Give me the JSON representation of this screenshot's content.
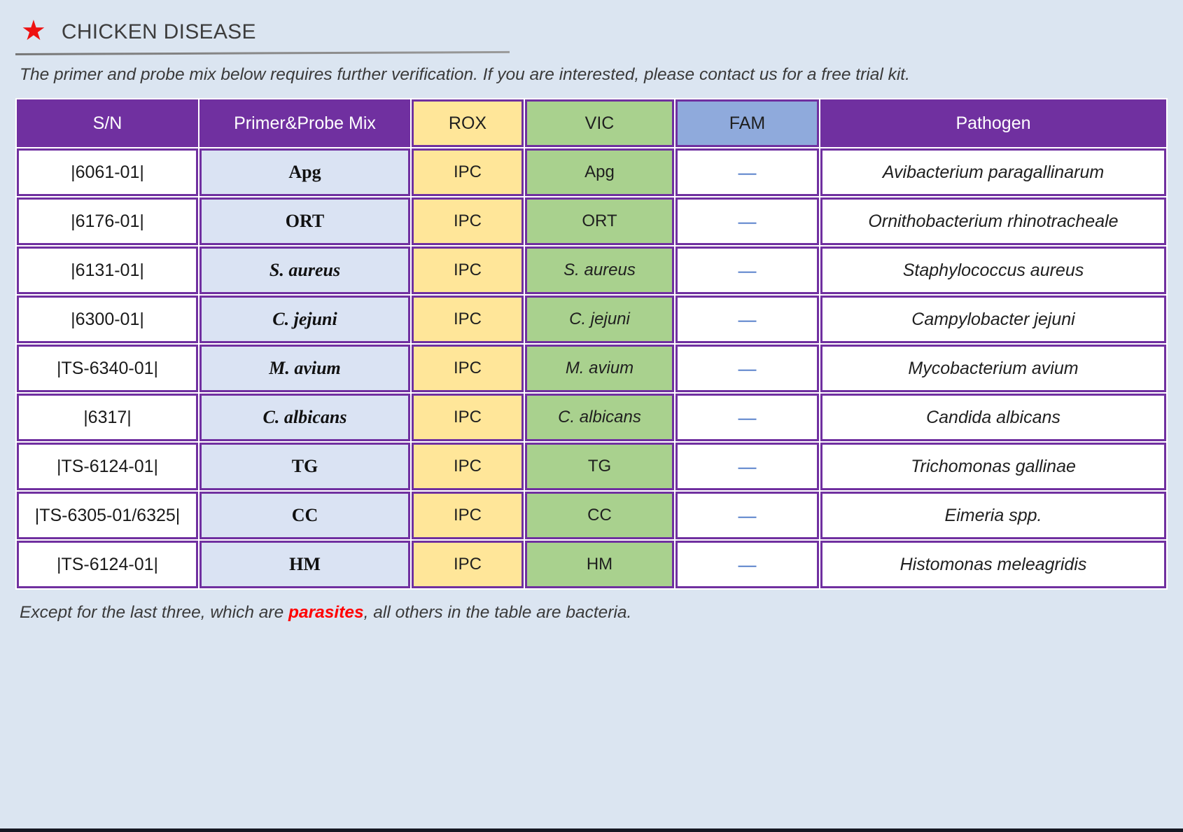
{
  "title": {
    "text": "CHICKEN DISEASE"
  },
  "icons": {
    "star": "★"
  },
  "intro_text": "The primer and probe mix below requires further verification. If you are interested, please contact us for a free trial kit.",
  "table": {
    "headers": [
      {
        "label": "S/N",
        "bg": "#7030a0",
        "color": "#ffffff"
      },
      {
        "label": "Primer&Probe Mix",
        "bg": "#7030a0",
        "color": "#ffffff"
      },
      {
        "label": "ROX",
        "bg": "#ffe699",
        "color": "#1f1f1f"
      },
      {
        "label": "VIC",
        "bg": "#a9d18e",
        "color": "#1f1f1f"
      },
      {
        "label": "FAM",
        "bg": "#8faadc",
        "color": "#1f1f1f"
      },
      {
        "label": "Pathogen",
        "bg": "#7030a0",
        "color": "#ffffff"
      }
    ],
    "rows": [
      {
        "sn": "|6061-01|",
        "mix": "Apg",
        "mix_italic": false,
        "rox": "IPC",
        "vic": "Apg",
        "vic_italic": false,
        "fam": "—",
        "pathogen": "Avibacterium paragallinarum"
      },
      {
        "sn": "|6176-01|",
        "mix": "ORT",
        "mix_italic": false,
        "rox": "IPC",
        "vic": "ORT",
        "vic_italic": false,
        "fam": "—",
        "pathogen": "Ornithobacterium rhinotracheale"
      },
      {
        "sn": "|6131-01|",
        "mix": "S. aureus",
        "mix_italic": true,
        "rox": "IPC",
        "vic": "S. aureus",
        "vic_italic": true,
        "fam": "—",
        "pathogen": "Staphylococcus aureus"
      },
      {
        "sn": "|6300-01|",
        "mix": "C. jejuni",
        "mix_italic": true,
        "rox": "IPC",
        "vic": "C. jejuni",
        "vic_italic": true,
        "fam": "—",
        "pathogen": "Campylobacter jejuni"
      },
      {
        "sn": "|TS-6340-01|",
        "mix": "M. avium",
        "mix_italic": true,
        "rox": "IPC",
        "vic": "M. avium",
        "vic_italic": true,
        "fam": "—",
        "pathogen": "Mycobacterium avium"
      },
      {
        "sn": "|6317|",
        "mix": "C. albicans",
        "mix_italic": true,
        "rox": "IPC",
        "vic": "C. albicans",
        "vic_italic": true,
        "fam": "—",
        "pathogen": "Candida albicans"
      },
      {
        "sn": "|TS-6124-01|",
        "mix": "TG",
        "mix_italic": false,
        "rox": "IPC",
        "vic": "TG",
        "vic_italic": false,
        "fam": "—",
        "pathogen": "Trichomonas gallinae"
      },
      {
        "sn": "|TS-6305-01/6325|",
        "mix": "CC",
        "mix_italic": false,
        "rox": "IPC",
        "vic": "CC",
        "vic_italic": false,
        "fam": "—",
        "pathogen": "Eimeria spp."
      },
      {
        "sn": "|TS-6124-01|",
        "mix": "HM",
        "mix_italic": false,
        "rox": "IPC",
        "vic": "HM",
        "vic_italic": false,
        "fam": "—",
        "pathogen": "Histomonas meleagridis"
      }
    ]
  },
  "footnote": {
    "prefix": "Except for the last three, which are ",
    "highlight": "parasites",
    "suffix": ", all others in the table are bacteria."
  },
  "colors": {
    "page_bg": "#dbe5f1",
    "table_border": "#7030a0",
    "mix_cell_bg": "#dae3f3",
    "rox_cell_bg": "#ffe699",
    "vic_cell_bg": "#a9d18e",
    "fam_header_bg": "#8faadc",
    "fam_dash": "#4472c4",
    "star_red": "#ee1111",
    "highlight_red": "#ff0000",
    "bottom_bar": "#151823"
  }
}
